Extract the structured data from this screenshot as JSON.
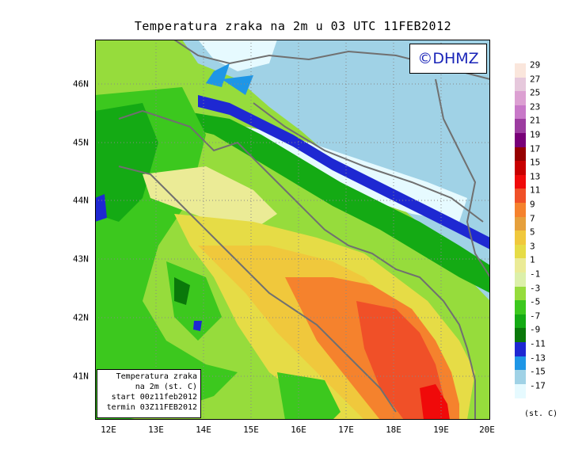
{
  "title": "Temperatura zraka na 2m u 03 UTC 11FEB2012",
  "logo_text": "©DHMZ",
  "info_box": {
    "line1": "Temperatura zraka",
    "line2": "na 2m (st. C)",
    "line3": "start 00z11feb2012",
    "line4": "termin 03Z11FEB2012"
  },
  "lat_labels": [
    "46N",
    "45N",
    "44N",
    "43N",
    "42N",
    "41N"
  ],
  "lon_labels": [
    "12E",
    "13E",
    "14E",
    "15E",
    "16E",
    "17E",
    "18E",
    "19E",
    "20E"
  ],
  "legend_labels": [
    "29",
    "27",
    "25",
    "23",
    "21",
    "19",
    "17",
    "15",
    "13",
    "11",
    "9",
    "7",
    "5",
    "3",
    "1",
    "-1",
    "-3",
    "-5",
    "-7",
    "-9",
    "-11",
    "-13",
    "-15",
    "-17"
  ],
  "legend_colors": [
    "#fae6dc",
    "#e6c8dc",
    "#dca0d2",
    "#c878c8",
    "#9c3ca0",
    "#780078",
    "#960000",
    "#c80000",
    "#f00a0a",
    "#f05028",
    "#f5822d",
    "#e6a03c",
    "#f0c83c",
    "#e6dc46",
    "#ebeb96",
    "#dcf0aa",
    "#96dc3c",
    "#3cc81e",
    "#14aa14",
    "#0a780a",
    "#1e28d2",
    "#1e96e6",
    "#a0d2e6",
    "#e6faff"
  ],
  "units_label": "(st. C)"
}
